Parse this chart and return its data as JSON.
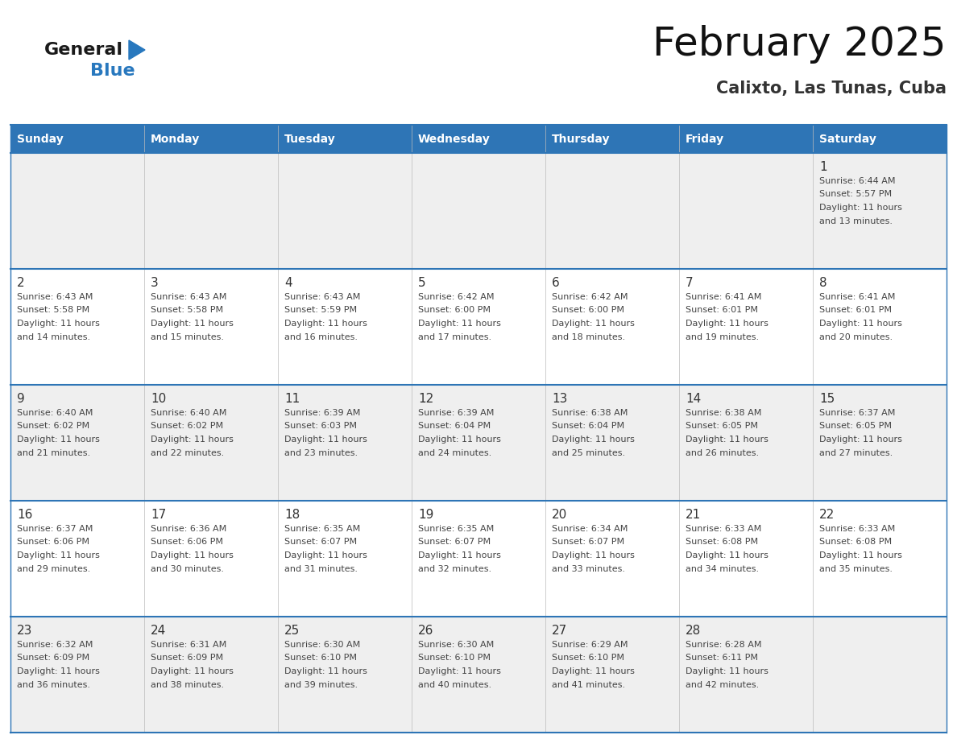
{
  "title": "February 2025",
  "subtitle": "Calixto, Las Tunas, Cuba",
  "header_bg": "#2E75B6",
  "header_text_color": "#FFFFFF",
  "row_bg_light": "#EFEFEF",
  "row_bg_white": "#FFFFFF",
  "day_text_color": "#333333",
  "info_text_color": "#444444",
  "border_color": "#2E75B6",
  "days_of_week": [
    "Sunday",
    "Monday",
    "Tuesday",
    "Wednesday",
    "Thursday",
    "Friday",
    "Saturday"
  ],
  "logo_general_color": "#1a1a1a",
  "logo_blue_color": "#2878BE",
  "calendar_data": [
    [
      null,
      null,
      null,
      null,
      null,
      null,
      1
    ],
    [
      2,
      3,
      4,
      5,
      6,
      7,
      8
    ],
    [
      9,
      10,
      11,
      12,
      13,
      14,
      15
    ],
    [
      16,
      17,
      18,
      19,
      20,
      21,
      22
    ],
    [
      23,
      24,
      25,
      26,
      27,
      28,
      null
    ]
  ],
  "sun_times": {
    "1": {
      "rise": "6:44 AM",
      "set": "5:57 PM",
      "hours": 11,
      "mins": 13
    },
    "2": {
      "rise": "6:43 AM",
      "set": "5:58 PM",
      "hours": 11,
      "mins": 14
    },
    "3": {
      "rise": "6:43 AM",
      "set": "5:58 PM",
      "hours": 11,
      "mins": 15
    },
    "4": {
      "rise": "6:43 AM",
      "set": "5:59 PM",
      "hours": 11,
      "mins": 16
    },
    "5": {
      "rise": "6:42 AM",
      "set": "6:00 PM",
      "hours": 11,
      "mins": 17
    },
    "6": {
      "rise": "6:42 AM",
      "set": "6:00 PM",
      "hours": 11,
      "mins": 18
    },
    "7": {
      "rise": "6:41 AM",
      "set": "6:01 PM",
      "hours": 11,
      "mins": 19
    },
    "8": {
      "rise": "6:41 AM",
      "set": "6:01 PM",
      "hours": 11,
      "mins": 20
    },
    "9": {
      "rise": "6:40 AM",
      "set": "6:02 PM",
      "hours": 11,
      "mins": 21
    },
    "10": {
      "rise": "6:40 AM",
      "set": "6:02 PM",
      "hours": 11,
      "mins": 22
    },
    "11": {
      "rise": "6:39 AM",
      "set": "6:03 PM",
      "hours": 11,
      "mins": 23
    },
    "12": {
      "rise": "6:39 AM",
      "set": "6:04 PM",
      "hours": 11,
      "mins": 24
    },
    "13": {
      "rise": "6:38 AM",
      "set": "6:04 PM",
      "hours": 11,
      "mins": 25
    },
    "14": {
      "rise": "6:38 AM",
      "set": "6:05 PM",
      "hours": 11,
      "mins": 26
    },
    "15": {
      "rise": "6:37 AM",
      "set": "6:05 PM",
      "hours": 11,
      "mins": 27
    },
    "16": {
      "rise": "6:37 AM",
      "set": "6:06 PM",
      "hours": 11,
      "mins": 29
    },
    "17": {
      "rise": "6:36 AM",
      "set": "6:06 PM",
      "hours": 11,
      "mins": 30
    },
    "18": {
      "rise": "6:35 AM",
      "set": "6:07 PM",
      "hours": 11,
      "mins": 31
    },
    "19": {
      "rise": "6:35 AM",
      "set": "6:07 PM",
      "hours": 11,
      "mins": 32
    },
    "20": {
      "rise": "6:34 AM",
      "set": "6:07 PM",
      "hours": 11,
      "mins": 33
    },
    "21": {
      "rise": "6:33 AM",
      "set": "6:08 PM",
      "hours": 11,
      "mins": 34
    },
    "22": {
      "rise": "6:33 AM",
      "set": "6:08 PM",
      "hours": 11,
      "mins": 35
    },
    "23": {
      "rise": "6:32 AM",
      "set": "6:09 PM",
      "hours": 11,
      "mins": 36
    },
    "24": {
      "rise": "6:31 AM",
      "set": "6:09 PM",
      "hours": 11,
      "mins": 38
    },
    "25": {
      "rise": "6:30 AM",
      "set": "6:10 PM",
      "hours": 11,
      "mins": 39
    },
    "26": {
      "rise": "6:30 AM",
      "set": "6:10 PM",
      "hours": 11,
      "mins": 40
    },
    "27": {
      "rise": "6:29 AM",
      "set": "6:10 PM",
      "hours": 11,
      "mins": 41
    },
    "28": {
      "rise": "6:28 AM",
      "set": "6:11 PM",
      "hours": 11,
      "mins": 42
    }
  }
}
